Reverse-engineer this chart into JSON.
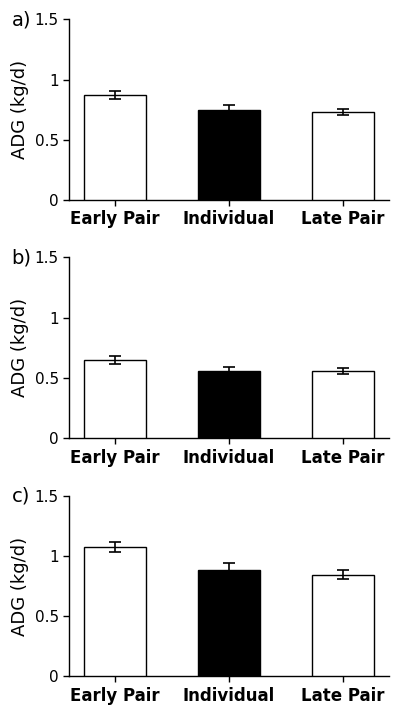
{
  "panels": [
    {
      "label": "a)",
      "categories": [
        "Early Pair",
        "Individual",
        "Late Pair"
      ],
      "values": [
        0.87,
        0.75,
        0.73
      ],
      "errors": [
        0.035,
        0.04,
        0.025
      ],
      "colors": [
        "#ffffff",
        "#000000",
        "#ffffff"
      ]
    },
    {
      "label": "b)",
      "categories": [
        "Early Pair",
        "Individual",
        "Late Pair"
      ],
      "values": [
        0.65,
        0.56,
        0.555
      ],
      "errors": [
        0.03,
        0.035,
        0.025
      ],
      "colors": [
        "#ffffff",
        "#000000",
        "#ffffff"
      ]
    },
    {
      "label": "c)",
      "categories": [
        "Early Pair",
        "Individual",
        "Late Pair"
      ],
      "values": [
        1.075,
        0.885,
        0.845
      ],
      "errors": [
        0.04,
        0.055,
        0.04
      ],
      "colors": [
        "#ffffff",
        "#000000",
        "#ffffff"
      ]
    }
  ],
  "ylabel": "ADG (kg/d)",
  "ylim": [
    0,
    1.5
  ],
  "yticks": [
    0,
    0.5,
    1,
    1.5
  ],
  "ytick_labels": [
    "0",
    "0.5",
    "1",
    "1.5"
  ],
  "bar_width": 0.55,
  "background_color": "#ffffff",
  "edge_color": "#000000",
  "label_fontsize": 13,
  "tick_fontsize": 11,
  "xlabel_fontsize": 12,
  "panel_label_fontsize": 14
}
